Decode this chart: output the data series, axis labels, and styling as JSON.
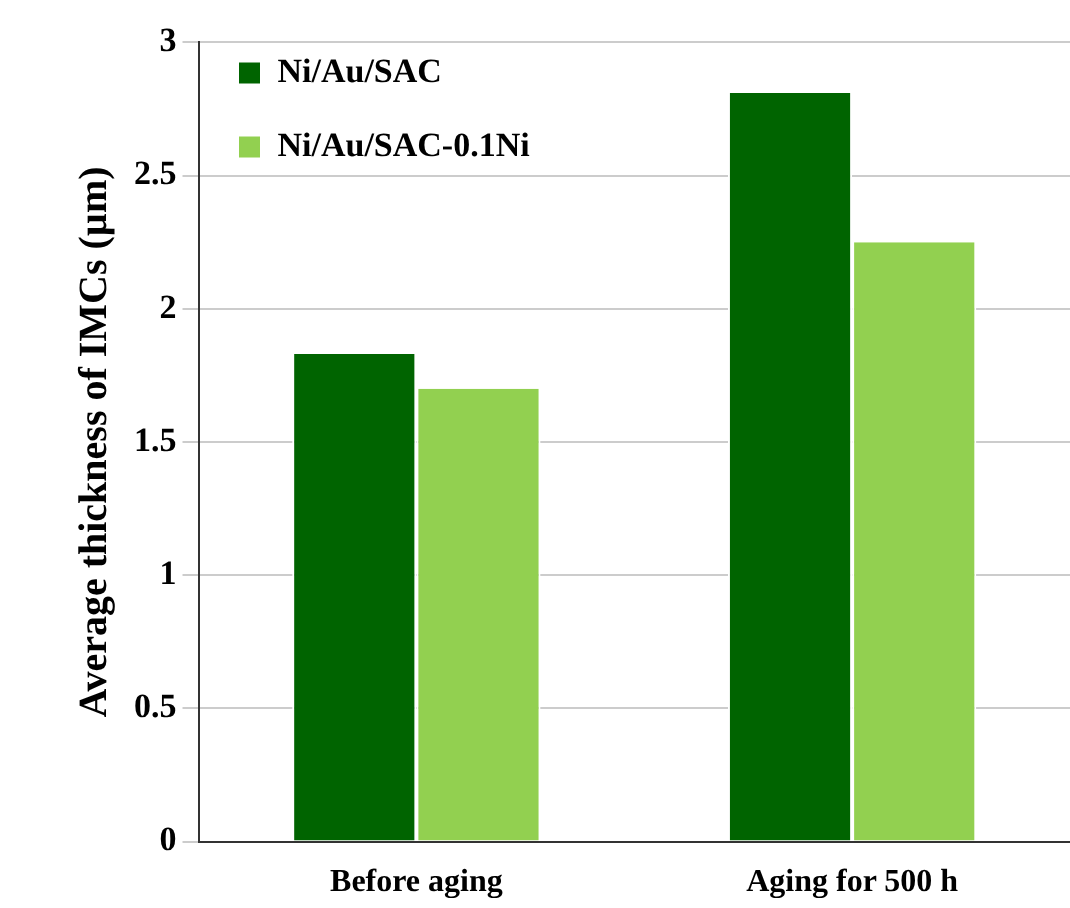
{
  "chart_data": {
    "type": "bar",
    "ylabel": "Average thickness of IMCs (µm)",
    "categories": [
      "Before aging",
      "Aging for 500 h"
    ],
    "series": [
      {
        "name": "Ni/Au/SAC",
        "color": "#006400",
        "values": [
          1.83,
          2.81
        ]
      },
      {
        "name": "Ni/Au/SAC-0.1Ni",
        "color": "#92d050",
        "values": [
          1.7,
          2.25
        ]
      }
    ],
    "ylim": [
      0,
      3
    ],
    "yticks": [
      0,
      0.5,
      1,
      1.5,
      2,
      2.5,
      3
    ],
    "grid": "y",
    "legend": "top left"
  }
}
